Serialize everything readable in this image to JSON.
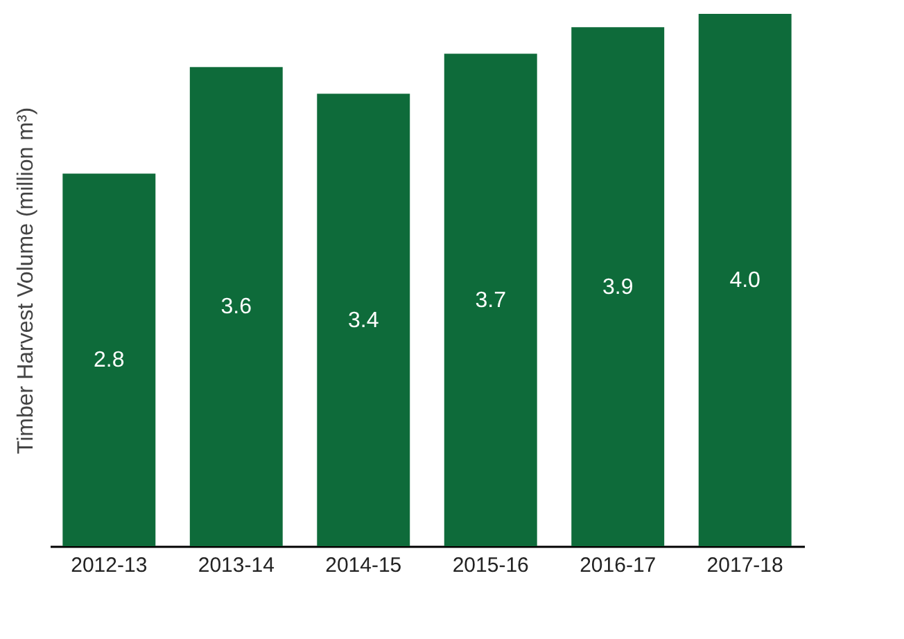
{
  "chart_data": {
    "type": "bar",
    "ylabel": "Timber Harvest Volume (million m³)",
    "categories": [
      "2012-13",
      "2013-14",
      "2014-15",
      "2015-16",
      "2016-17",
      "2017-18"
    ],
    "values": [
      2.8,
      3.6,
      3.4,
      3.7,
      3.9,
      4.0
    ],
    "value_labels": [
      "2.8",
      "3.6",
      "3.4",
      "3.7",
      "3.9",
      "4.0"
    ],
    "color": "#0e6b3a",
    "ylim": [
      0,
      4.0
    ],
    "grid": false,
    "tick_labels": "x"
  }
}
